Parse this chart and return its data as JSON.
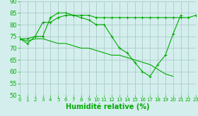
{
  "line1": {
    "x": [
      0,
      1,
      2,
      3,
      4,
      5,
      6,
      7,
      8,
      9,
      10,
      11,
      12,
      13,
      14,
      15,
      16,
      17,
      18,
      19,
      20,
      21,
      22,
      23
    ],
    "y": [
      74,
      74,
      75,
      81,
      81,
      83,
      84,
      84,
      84,
      84,
      83,
      83,
      83,
      83,
      83,
      83,
      83,
      83,
      83,
      83,
      83,
      83,
      83,
      84
    ],
    "color": "#00bb00",
    "marker": "+"
  },
  "line2": {
    "x": [
      0,
      1,
      2,
      3,
      4,
      5,
      6,
      7,
      8,
      9,
      10,
      11,
      12,
      13,
      14,
      15,
      16,
      17,
      18,
      19,
      20,
      21,
      22,
      23
    ],
    "y": [
      74,
      72,
      75,
      75,
      83,
      85,
      85,
      84,
      83,
      82,
      80,
      80,
      75,
      70,
      68,
      64,
      60,
      58,
      63,
      67,
      76,
      84,
      null,
      null
    ],
    "color": "#00bb00",
    "marker": "+"
  },
  "line3": {
    "x": [
      0,
      1,
      2,
      3,
      4,
      5,
      6,
      7,
      8,
      9,
      10,
      11,
      12,
      13,
      14,
      15,
      16,
      17,
      18,
      19,
      20
    ],
    "y": [
      74,
      73,
      74,
      74,
      73,
      72,
      72,
      71,
      70,
      70,
      69,
      68,
      67,
      67,
      66,
      65,
      64,
      63,
      61,
      59,
      58
    ],
    "color": "#00bb00"
  },
  "xlim": [
    0,
    23
  ],
  "ylim": [
    50,
    90
  ],
  "yticks": [
    50,
    55,
    60,
    65,
    70,
    75,
    80,
    85,
    90
  ],
  "xticks": [
    0,
    1,
    2,
    3,
    4,
    5,
    6,
    7,
    8,
    9,
    10,
    11,
    12,
    13,
    14,
    15,
    16,
    17,
    18,
    19,
    20,
    21,
    22,
    23
  ],
  "xlabel": "Humidité relative (%)",
  "bg_color": "#d4eeed",
  "grid_color": "#aaccc8",
  "line_color": "#00aa00",
  "xlabel_color": "#00aa00",
  "tick_color": "#00aa00",
  "fontsize_xlabel": 7,
  "fontsize_xticks": 5,
  "fontsize_yticks": 6,
  "marker_size": 2.5,
  "linewidth": 0.8
}
